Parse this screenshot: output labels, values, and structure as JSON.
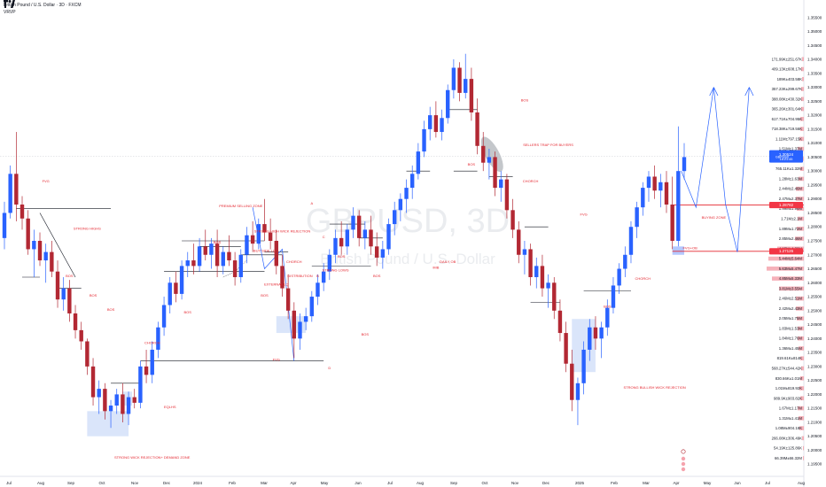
{
  "header": {
    "instrument": "British Pound / U.S. Dollar · 3D · FXCM",
    "indicator": "VRVP"
  },
  "watermark": {
    "symbol": "GBPUSD, 3D",
    "name": "British Pound / U.S. Dollar"
  },
  "colors": {
    "up": "#2962ff",
    "down": "#b22833",
    "annotation": "#e4262f",
    "line": "#131722",
    "projection": "#2962ff",
    "zone": "#bbd0f5",
    "volume_profile": "#f5a3ad",
    "price_box": "#2962ff",
    "level_box": "#f23645"
  },
  "chart_data": {
    "type": "candlestick",
    "timeframe": "3D",
    "y_axis": {
      "min": 1.19,
      "max": 1.36,
      "ticks": [
        "1.35500",
        "1.35000",
        "1.34500",
        "1.34000",
        "1.33500",
        "1.33000",
        "1.32500",
        "1.32000",
        "1.31500",
        "1.31000",
        "1.30500",
        "1.30000",
        "1.29500",
        "1.29000",
        "1.28500",
        "1.28000",
        "1.27500",
        "1.27000",
        "1.26500",
        "1.26000",
        "1.25500",
        "1.25000",
        "1.24500",
        "1.24000",
        "1.23500",
        "1.23000",
        "1.22500",
        "1.22000",
        "1.21500",
        "1.21000",
        "1.20500",
        "1.20000",
        "1.19500"
      ]
    },
    "x_axis": {
      "ticks": [
        "Jul",
        "Aug",
        "Sep",
        "Oct",
        "Nov",
        "Dec",
        "2024",
        "Feb",
        "Mar",
        "Apr",
        "May",
        "Jun",
        "Jul",
        "Aug",
        "Sep",
        "Oct",
        "Nov",
        "Dec",
        "2025",
        "Feb",
        "Mar",
        "Apr",
        "May",
        "Jun",
        "Jul",
        "Aug"
      ]
    },
    "price_labels": {
      "current": "1.30524",
      "current_sub": "GBPUSD",
      "current_time": "16:21:45",
      "level_1": "1.28782",
      "level_2": "1.27126"
    },
    "volume_profile_labels": [
      "171.99K±251.67K",
      "409.13K±608.17K",
      "189K±403.58K",
      "357.23K±299.67K",
      "388.08K±430.32K",
      "365.26K±301.64K",
      "617.71K±704.95K",
      "718.38K±719.56K",
      "1.11M±797.15K",
      "1.51M±1.37M",
      "1.21M±1.38M",
      "765.11K±1.32M",
      "1.28M±1.63M",
      "2.44M±2.46M",
      "2.47M±2.37M",
      "1.99M±1.96M",
      "1.71M±2.1M",
      "1.89M±1.72M",
      "2.85M±2.46M",
      "4.15M±4.38M",
      "5.44M±5.64M",
      "5.63M±5.47M",
      "4.85M±5.33M",
      "3.81M±3.55M",
      "2.46M±2.51M",
      "2.42M±2.43M",
      "2.05M±1.75M",
      "1.83M±1.53M",
      "1.84M±1.76M",
      "1.36M±1.45M",
      "819.61K±814K",
      "568.27K±544.42K",
      "830.66K±1.01M",
      "1.01M±819.92K",
      "989.9K±903.82K",
      "1.67M±1.17M",
      "1.31M±1.41M",
      "1.08M±904.18K",
      "266.08K±306.49K",
      "54.19K±125.86K",
      "66.39M±66.32M"
    ],
    "annotations": [
      "FVG",
      "STRONG HIGHS",
      "BOS",
      "BOS",
      "BOS",
      "CHORCH",
      "EQLHS",
      "STRONG WICK REJECTION+ DEMAND ZONE",
      "BOS",
      "PREMIUM SELLING ZONE",
      "BOS",
      "STRONG HIGH WICK REJECTION",
      "BUY SIDE LQ",
      "EXTERNAL LQ",
      "CHORCH",
      "DISTRIBUTION",
      "BOS",
      "FVG",
      "A",
      "B",
      "C",
      "D",
      "BOS",
      "STRONG LOWS",
      "BOS",
      "BOS",
      "DAILY OB",
      "IMB",
      "BOS",
      "BOS",
      "SELLERS TRAP FOR BUYERS",
      "CHORCH",
      "FVG",
      "BOS",
      "CHORCH",
      "STRONG BULLISH WICK REJECTION",
      "BUYING ZONE",
      "FVG+OB"
    ],
    "series": [
      {
        "o": 1.276,
        "h": 1.289,
        "l": 1.272,
        "c": 1.285
      },
      {
        "o": 1.285,
        "h": 1.302,
        "l": 1.283,
        "c": 1.299
      },
      {
        "o": 1.299,
        "h": 1.314,
        "l": 1.282,
        "c": 1.288
      },
      {
        "o": 1.288,
        "h": 1.291,
        "l": 1.279,
        "c": 1.283
      },
      {
        "o": 1.283,
        "h": 1.286,
        "l": 1.27,
        "c": 1.272
      },
      {
        "o": 1.272,
        "h": 1.279,
        "l": 1.262,
        "c": 1.275
      },
      {
        "o": 1.275,
        "h": 1.278,
        "l": 1.266,
        "c": 1.268
      },
      {
        "o": 1.268,
        "h": 1.274,
        "l": 1.26,
        "c": 1.271
      },
      {
        "o": 1.271,
        "h": 1.275,
        "l": 1.262,
        "c": 1.264
      },
      {
        "o": 1.264,
        "h": 1.268,
        "l": 1.251,
        "c": 1.254
      },
      {
        "o": 1.254,
        "h": 1.262,
        "l": 1.25,
        "c": 1.258
      },
      {
        "o": 1.258,
        "h": 1.261,
        "l": 1.246,
        "c": 1.249
      },
      {
        "o": 1.249,
        "h": 1.252,
        "l": 1.24,
        "c": 1.243
      },
      {
        "o": 1.243,
        "h": 1.246,
        "l": 1.236,
        "c": 1.239
      },
      {
        "o": 1.239,
        "h": 1.24,
        "l": 1.227,
        "c": 1.23
      },
      {
        "o": 1.23,
        "h": 1.233,
        "l": 1.216,
        "c": 1.219
      },
      {
        "o": 1.219,
        "h": 1.225,
        "l": 1.213,
        "c": 1.222
      },
      {
        "o": 1.222,
        "h": 1.224,
        "l": 1.211,
        "c": 1.214
      },
      {
        "o": 1.214,
        "h": 1.218,
        "l": 1.208,
        "c": 1.216
      },
      {
        "o": 1.216,
        "h": 1.222,
        "l": 1.213,
        "c": 1.22
      },
      {
        "o": 1.22,
        "h": 1.224,
        "l": 1.21,
        "c": 1.213
      },
      {
        "o": 1.213,
        "h": 1.221,
        "l": 1.209,
        "c": 1.219
      },
      {
        "o": 1.219,
        "h": 1.222,
        "l": 1.215,
        "c": 1.217
      },
      {
        "o": 1.217,
        "h": 1.232,
        "l": 1.215,
        "c": 1.23
      },
      {
        "o": 1.23,
        "h": 1.236,
        "l": 1.224,
        "c": 1.227
      },
      {
        "o": 1.227,
        "h": 1.239,
        "l": 1.224,
        "c": 1.236
      },
      {
        "o": 1.236,
        "h": 1.246,
        "l": 1.233,
        "c": 1.244
      },
      {
        "o": 1.244,
        "h": 1.255,
        "l": 1.241,
        "c": 1.252
      },
      {
        "o": 1.252,
        "h": 1.262,
        "l": 1.249,
        "c": 1.26
      },
      {
        "o": 1.26,
        "h": 1.264,
        "l": 1.253,
        "c": 1.256
      },
      {
        "o": 1.256,
        "h": 1.268,
        "l": 1.254,
        "c": 1.266
      },
      {
        "o": 1.266,
        "h": 1.271,
        "l": 1.262,
        "c": 1.268
      },
      {
        "o": 1.268,
        "h": 1.274,
        "l": 1.263,
        "c": 1.266
      },
      {
        "o": 1.266,
        "h": 1.276,
        "l": 1.264,
        "c": 1.273
      },
      {
        "o": 1.273,
        "h": 1.279,
        "l": 1.268,
        "c": 1.27
      },
      {
        "o": 1.27,
        "h": 1.276,
        "l": 1.265,
        "c": 1.274
      },
      {
        "o": 1.274,
        "h": 1.279,
        "l": 1.262,
        "c": 1.266
      },
      {
        "o": 1.266,
        "h": 1.273,
        "l": 1.263,
        "c": 1.271
      },
      {
        "o": 1.271,
        "h": 1.277,
        "l": 1.266,
        "c": 1.268
      },
      {
        "o": 1.268,
        "h": 1.271,
        "l": 1.259,
        "c": 1.262
      },
      {
        "o": 1.262,
        "h": 1.272,
        "l": 1.26,
        "c": 1.27
      },
      {
        "o": 1.27,
        "h": 1.28,
        "l": 1.267,
        "c": 1.277
      },
      {
        "o": 1.277,
        "h": 1.282,
        "l": 1.271,
        "c": 1.274
      },
      {
        "o": 1.274,
        "h": 1.283,
        "l": 1.272,
        "c": 1.281
      },
      {
        "o": 1.281,
        "h": 1.29,
        "l": 1.275,
        "c": 1.278
      },
      {
        "o": 1.278,
        "h": 1.283,
        "l": 1.272,
        "c": 1.275
      },
      {
        "o": 1.275,
        "h": 1.279,
        "l": 1.263,
        "c": 1.266
      },
      {
        "o": 1.266,
        "h": 1.27,
        "l": 1.255,
        "c": 1.258
      },
      {
        "o": 1.258,
        "h": 1.263,
        "l": 1.247,
        "c": 1.25
      },
      {
        "o": 1.25,
        "h": 1.253,
        "l": 1.233,
        "c": 1.24
      },
      {
        "o": 1.24,
        "h": 1.249,
        "l": 1.236,
        "c": 1.246
      },
      {
        "o": 1.246,
        "h": 1.251,
        "l": 1.243,
        "c": 1.248
      },
      {
        "o": 1.248,
        "h": 1.257,
        "l": 1.246,
        "c": 1.255
      },
      {
        "o": 1.255,
        "h": 1.263,
        "l": 1.252,
        "c": 1.26
      },
      {
        "o": 1.26,
        "h": 1.267,
        "l": 1.257,
        "c": 1.264
      },
      {
        "o": 1.264,
        "h": 1.272,
        "l": 1.261,
        "c": 1.27
      },
      {
        "o": 1.27,
        "h": 1.279,
        "l": 1.267,
        "c": 1.276
      },
      {
        "o": 1.276,
        "h": 1.282,
        "l": 1.27,
        "c": 1.273
      },
      {
        "o": 1.273,
        "h": 1.281,
        "l": 1.27,
        "c": 1.279
      },
      {
        "o": 1.279,
        "h": 1.287,
        "l": 1.276,
        "c": 1.284
      },
      {
        "o": 1.284,
        "h": 1.286,
        "l": 1.273,
        "c": 1.276
      },
      {
        "o": 1.276,
        "h": 1.282,
        "l": 1.272,
        "c": 1.279
      },
      {
        "o": 1.279,
        "h": 1.284,
        "l": 1.27,
        "c": 1.273
      },
      {
        "o": 1.273,
        "h": 1.278,
        "l": 1.266,
        "c": 1.269
      },
      {
        "o": 1.269,
        "h": 1.275,
        "l": 1.265,
        "c": 1.272
      },
      {
        "o": 1.272,
        "h": 1.283,
        "l": 1.27,
        "c": 1.281
      },
      {
        "o": 1.281,
        "h": 1.289,
        "l": 1.277,
        "c": 1.286
      },
      {
        "o": 1.286,
        "h": 1.292,
        "l": 1.282,
        "c": 1.29
      },
      {
        "o": 1.29,
        "h": 1.297,
        "l": 1.285,
        "c": 1.294
      },
      {
        "o": 1.294,
        "h": 1.302,
        "l": 1.29,
        "c": 1.299
      },
      {
        "o": 1.299,
        "h": 1.31,
        "l": 1.297,
        "c": 1.307
      },
      {
        "o": 1.307,
        "h": 1.318,
        "l": 1.305,
        "c": 1.315
      },
      {
        "o": 1.315,
        "h": 1.323,
        "l": 1.311,
        "c": 1.32
      },
      {
        "o": 1.32,
        "h": 1.325,
        "l": 1.312,
        "c": 1.314
      },
      {
        "o": 1.314,
        "h": 1.322,
        "l": 1.311,
        "c": 1.319
      },
      {
        "o": 1.319,
        "h": 1.331,
        "l": 1.317,
        "c": 1.329
      },
      {
        "o": 1.329,
        "h": 1.34,
        "l": 1.326,
        "c": 1.337
      },
      {
        "o": 1.337,
        "h": 1.339,
        "l": 1.325,
        "c": 1.328
      },
      {
        "o": 1.328,
        "h": 1.342,
        "l": 1.326,
        "c": 1.333
      },
      {
        "o": 1.333,
        "h": 1.337,
        "l": 1.318,
        "c": 1.321
      },
      {
        "o": 1.321,
        "h": 1.326,
        "l": 1.306,
        "c": 1.309
      },
      {
        "o": 1.309,
        "h": 1.314,
        "l": 1.3,
        "c": 1.303
      },
      {
        "o": 1.303,
        "h": 1.308,
        "l": 1.297,
        "c": 1.305
      },
      {
        "o": 1.305,
        "h": 1.307,
        "l": 1.291,
        "c": 1.294
      },
      {
        "o": 1.294,
        "h": 1.3,
        "l": 1.289,
        "c": 1.297
      },
      {
        "o": 1.297,
        "h": 1.299,
        "l": 1.283,
        "c": 1.286
      },
      {
        "o": 1.286,
        "h": 1.29,
        "l": 1.276,
        "c": 1.279
      },
      {
        "o": 1.279,
        "h": 1.282,
        "l": 1.267,
        "c": 1.27
      },
      {
        "o": 1.27,
        "h": 1.275,
        "l": 1.263,
        "c": 1.272
      },
      {
        "o": 1.272,
        "h": 1.274,
        "l": 1.259,
        "c": 1.262
      },
      {
        "o": 1.262,
        "h": 1.269,
        "l": 1.258,
        "c": 1.266
      },
      {
        "o": 1.266,
        "h": 1.27,
        "l": 1.255,
        "c": 1.258
      },
      {
        "o": 1.258,
        "h": 1.263,
        "l": 1.251,
        "c": 1.26
      },
      {
        "o": 1.26,
        "h": 1.262,
        "l": 1.247,
        "c": 1.25
      },
      {
        "o": 1.25,
        "h": 1.254,
        "l": 1.239,
        "c": 1.242
      },
      {
        "o": 1.242,
        "h": 1.246,
        "l": 1.228,
        "c": 1.231
      },
      {
        "o": 1.231,
        "h": 1.236,
        "l": 1.214,
        "c": 1.218
      },
      {
        "o": 1.218,
        "h": 1.226,
        "l": 1.209,
        "c": 1.224
      },
      {
        "o": 1.224,
        "h": 1.239,
        "l": 1.22,
        "c": 1.236
      },
      {
        "o": 1.236,
        "h": 1.247,
        "l": 1.232,
        "c": 1.244
      },
      {
        "o": 1.244,
        "h": 1.248,
        "l": 1.236,
        "c": 1.24
      },
      {
        "o": 1.24,
        "h": 1.246,
        "l": 1.233,
        "c": 1.244
      },
      {
        "o": 1.244,
        "h": 1.254,
        "l": 1.241,
        "c": 1.251
      },
      {
        "o": 1.251,
        "h": 1.262,
        "l": 1.249,
        "c": 1.259
      },
      {
        "o": 1.259,
        "h": 1.267,
        "l": 1.256,
        "c": 1.265
      },
      {
        "o": 1.265,
        "h": 1.273,
        "l": 1.262,
        "c": 1.27
      },
      {
        "o": 1.27,
        "h": 1.282,
        "l": 1.267,
        "c": 1.28
      },
      {
        "o": 1.28,
        "h": 1.289,
        "l": 1.276,
        "c": 1.287
      },
      {
        "o": 1.287,
        "h": 1.296,
        "l": 1.284,
        "c": 1.294
      },
      {
        "o": 1.294,
        "h": 1.3,
        "l": 1.289,
        "c": 1.298
      },
      {
        "o": 1.298,
        "h": 1.302,
        "l": 1.29,
        "c": 1.293
      },
      {
        "o": 1.293,
        "h": 1.299,
        "l": 1.287,
        "c": 1.296
      },
      {
        "o": 1.296,
        "h": 1.3,
        "l": 1.285,
        "c": 1.288
      },
      {
        "o": 1.288,
        "h": 1.298,
        "l": 1.272,
        "c": 1.275
      },
      {
        "o": 1.275,
        "h": 1.316,
        "l": 1.273,
        "c": 1.3
      },
      {
        "o": 1.3,
        "h": 1.31,
        "l": 1.297,
        "c": 1.305
      }
    ]
  }
}
